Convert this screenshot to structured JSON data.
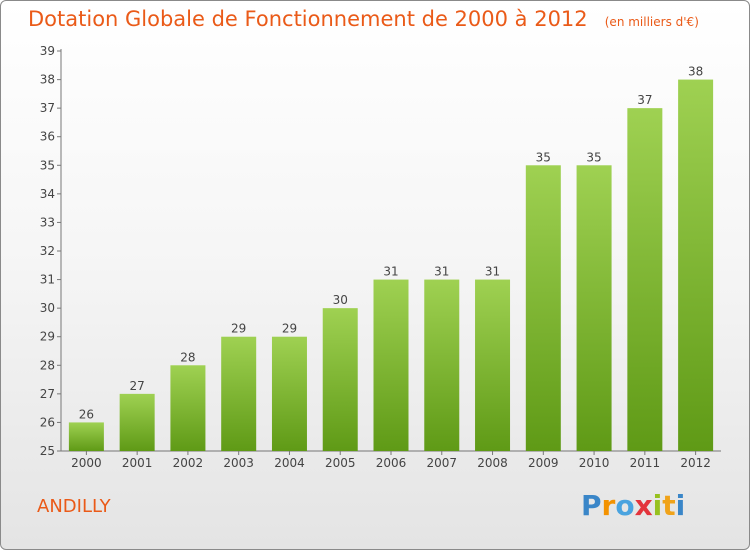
{
  "header": {
    "title": "Dotation Globale de Fonctionnement de 2000 à 2012",
    "unit": "(en milliers d'€)"
  },
  "commune": "ANDILLY",
  "brand": {
    "letters": [
      "P",
      "r",
      "o",
      "x",
      "i",
      "t",
      "i"
    ],
    "colors": [
      "#3a86c8",
      "#f39200",
      "#4aa3df",
      "#e3343c",
      "#97c11f",
      "#f0a31a",
      "#3a86c8"
    ]
  },
  "chart_data": {
    "type": "bar",
    "categories": [
      "2000",
      "2001",
      "2002",
      "2003",
      "2004",
      "2005",
      "2006",
      "2007",
      "2008",
      "2009",
      "2010",
      "2011",
      "2012"
    ],
    "values": [
      26,
      27,
      28,
      29,
      29,
      30,
      31,
      31,
      31,
      35,
      35,
      37,
      38
    ],
    "ylim": [
      25,
      39
    ],
    "yticks": [
      25,
      26,
      27,
      28,
      29,
      30,
      31,
      32,
      33,
      34,
      35,
      36,
      37,
      38,
      39
    ],
    "grid": false,
    "colors": {
      "bar_light": "#9fd152",
      "bar_dark": "#5f9a16",
      "axis": "#777777",
      "text": "#444444"
    }
  }
}
